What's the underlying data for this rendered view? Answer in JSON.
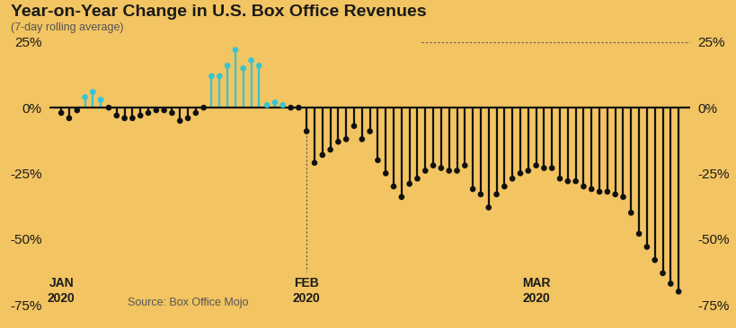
{
  "chart_data": {
    "type": "bar",
    "title": "Year-on-Year Change in U.S. Box Office Revenues",
    "subtitle": "(7-day rolling average)",
    "source": "Source: Box Office Mojo",
    "categories": [
      "JAN\n2020",
      null,
      null,
      null,
      null,
      null,
      null,
      null,
      null,
      null,
      null,
      null,
      null,
      null,
      null,
      null,
      null,
      null,
      null,
      null,
      null,
      null,
      null,
      null,
      null,
      null,
      null,
      null,
      null,
      null,
      null,
      "FEB\n2020",
      null,
      null,
      null,
      null,
      null,
      null,
      null,
      null,
      null,
      null,
      null,
      null,
      null,
      null,
      null,
      null,
      null,
      null,
      null,
      null,
      null,
      null,
      null,
      null,
      null,
      null,
      null,
      null,
      "MAR\n2020",
      null,
      null,
      null,
      null,
      null,
      null,
      null,
      null,
      null,
      null,
      null,
      null,
      null,
      null,
      null,
      null,
      null,
      null
    ],
    "values": [
      -2,
      -4,
      -1,
      4,
      6,
      3,
      0,
      -3,
      -4,
      -4,
      -3,
      -2,
      -1,
      -1,
      -2,
      -5,
      -4,
      -2,
      0,
      12,
      12,
      16,
      22,
      15,
      18,
      16,
      1,
      2,
      1,
      0,
      0,
      -9,
      -21,
      -18,
      -16,
      -13,
      -12,
      -7,
      -12,
      -9,
      -20,
      -25,
      -30,
      -34,
      -29,
      -27,
      -24,
      -22,
      -23,
      -24,
      -24,
      -22,
      -31,
      -33,
      -38,
      -33,
      -30,
      -27,
      -25,
      -24,
      -22,
      -23,
      -23,
      -27,
      -28,
      -28,
      -30,
      -31,
      -32,
      -32,
      -33,
      -34,
      -40,
      -48,
      -53,
      -58,
      -63,
      -67,
      -70
    ],
    "colors": [
      "#111111",
      "#111111",
      "#111111",
      "#33c6d6",
      "#33c6d6",
      "#33c6d6",
      "#111111",
      "#111111",
      "#111111",
      "#111111",
      "#111111",
      "#111111",
      "#111111",
      "#111111",
      "#111111",
      "#111111",
      "#111111",
      "#111111",
      "#111111",
      "#33c6d6",
      "#33c6d6",
      "#33c6d6",
      "#33c6d6",
      "#33c6d6",
      "#33c6d6",
      "#33c6d6",
      "#33c6d6",
      "#33c6d6",
      "#33c6d6",
      "#111111",
      "#111111",
      "#111111",
      "#111111",
      "#111111",
      "#111111",
      "#111111",
      "#111111",
      "#111111",
      "#111111",
      "#111111",
      "#111111",
      "#111111",
      "#111111",
      "#111111",
      "#111111",
      "#111111",
      "#111111",
      "#111111",
      "#111111",
      "#111111",
      "#111111",
      "#111111",
      "#111111",
      "#111111",
      "#111111",
      "#111111",
      "#111111",
      "#111111",
      "#111111",
      "#111111",
      "#111111",
      "#111111",
      "#111111",
      "#111111",
      "#111111",
      "#111111",
      "#111111",
      "#111111",
      "#111111",
      "#111111",
      "#111111",
      "#111111",
      "#111111",
      "#111111",
      "#111111",
      "#111111",
      "#111111",
      "#111111",
      "#111111"
    ],
    "ylim": [
      -75,
      25
    ],
    "yticks": [
      {
        "value": 25,
        "label": "25%"
      },
      {
        "value": 0,
        "label": "0%"
      },
      {
        "value": -25,
        "label": "-25%"
      },
      {
        "value": -50,
        "label": "-50%"
      },
      {
        "value": -75,
        "label": "-75%"
      }
    ]
  }
}
